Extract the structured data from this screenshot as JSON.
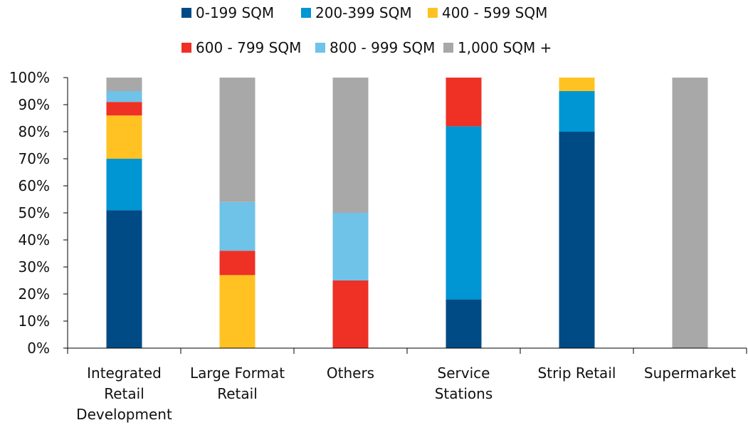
{
  "chart_data": {
    "type": "bar",
    "stacked": true,
    "title": "",
    "xlabel": "",
    "ylabel": "",
    "ylim": [
      0,
      100
    ],
    "yticks": [
      "0%",
      "10%",
      "20%",
      "30%",
      "40%",
      "50%",
      "60%",
      "70%",
      "80%",
      "90%",
      "100%"
    ],
    "legend_position": "top",
    "categories": [
      [
        "Integrated",
        "Retail",
        "Development"
      ],
      [
        "Large Format",
        "Retail"
      ],
      [
        "Others"
      ],
      [
        "Service",
        "Stations"
      ],
      [
        "Strip Retail"
      ],
      [
        "Supermarket"
      ]
    ],
    "series": [
      {
        "name": "0-199 SQM",
        "color": "#004B85",
        "values": [
          51,
          0,
          0,
          18,
          80,
          0
        ]
      },
      {
        "name": "200-399 SQM",
        "color": "#0095D3",
        "values": [
          19,
          0,
          0,
          64,
          15,
          0
        ]
      },
      {
        "name": "400 - 599 SQM",
        "color": "#FFC222",
        "values": [
          16,
          27,
          0,
          0,
          5,
          0
        ]
      },
      {
        "name": "600 - 799 SQM",
        "color": "#EE3124",
        "values": [
          5,
          9,
          25,
          18,
          0,
          0
        ]
      },
      {
        "name": "800 - 999 SQM",
        "color": "#6FC2E8",
        "values": [
          4,
          18,
          25,
          0,
          0,
          0
        ]
      },
      {
        "name": "1,000 SQM +",
        "color": "#A8A8A8",
        "values": [
          5,
          46,
          50,
          0,
          0,
          100
        ]
      }
    ]
  }
}
